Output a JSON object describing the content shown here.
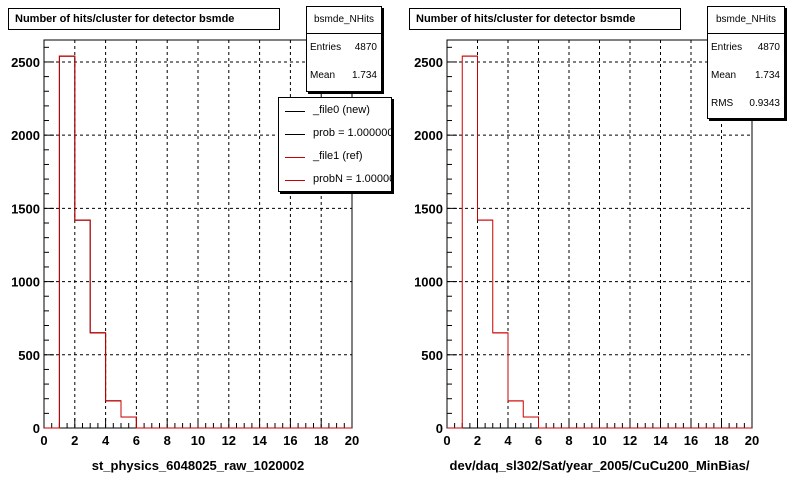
{
  "chart_data": [
    {
      "type": "histogram",
      "title": "Number of hits/cluster for detector bsmde",
      "xlabel": "st_physics_6048025_raw_1020002",
      "xlim": [
        0,
        20
      ],
      "ylim": [
        0,
        2650
      ],
      "x_ticks": [
        0,
        2,
        4,
        6,
        8,
        10,
        12,
        14,
        16,
        18,
        20
      ],
      "y_ticks": [
        0,
        500,
        1000,
        1500,
        2000,
        2500
      ],
      "grid": true,
      "bin_edges": [
        0,
        1,
        2,
        3,
        4,
        5,
        6,
        7,
        8,
        9,
        10,
        11,
        12,
        13,
        14,
        15,
        16,
        17,
        18,
        19,
        20
      ],
      "series": [
        {
          "name": "_file0 (new)",
          "color": "#000000",
          "values": [
            0,
            2540,
            1420,
            650,
            185,
            75,
            0,
            0,
            0,
            0,
            0,
            0,
            0,
            0,
            0,
            0,
            0,
            0,
            0,
            0
          ]
        },
        {
          "name": "_file1 (ref)",
          "color": "#cc0000",
          "values": [
            0,
            2540,
            1420,
            650,
            185,
            75,
            0,
            0,
            0,
            0,
            0,
            0,
            0,
            0,
            0,
            0,
            0,
            0,
            0,
            0
          ]
        }
      ],
      "stats": {
        "name": "bsmde_NHits",
        "rows": [
          {
            "key": "Entries",
            "value": "4870"
          },
          {
            "key": "Mean",
            "value": "1.734"
          }
        ]
      },
      "legend": [
        {
          "label": "_file0 (new)",
          "color": "#000000"
        },
        {
          "label": "prob = 1.000000",
          "color": "#000000"
        },
        {
          "label": "_file1 (ref)",
          "color": "#cc0000"
        },
        {
          "label": "probN = 1.000000",
          "color": "#cc0000"
        }
      ]
    },
    {
      "type": "histogram",
      "title": "Number of hits/cluster for detector bsmde",
      "xlabel": "dev/daq_sl302/Sat/year_2005/CuCu200_MinBias/",
      "xlim": [
        0,
        20
      ],
      "ylim": [
        0,
        2650
      ],
      "x_ticks": [
        0,
        2,
        4,
        6,
        8,
        10,
        12,
        14,
        16,
        18,
        20
      ],
      "y_ticks": [
        0,
        500,
        1000,
        1500,
        2000,
        2500
      ],
      "grid": true,
      "bin_edges": [
        0,
        1,
        2,
        3,
        4,
        5,
        6,
        7,
        8,
        9,
        10,
        11,
        12,
        13,
        14,
        15,
        16,
        17,
        18,
        19,
        20
      ],
      "series": [
        {
          "name": "",
          "color": "#cc0000",
          "values": [
            0,
            2540,
            1420,
            650,
            185,
            75,
            0,
            0,
            0,
            0,
            0,
            0,
            0,
            0,
            0,
            0,
            0,
            0,
            0,
            0
          ]
        }
      ],
      "stats": {
        "name": "bsmde_NHits",
        "rows": [
          {
            "key": "Entries",
            "value": "4870"
          },
          {
            "key": "Mean",
            "value": "1.734"
          },
          {
            "key": "RMS",
            "value": "0.9343"
          }
        ]
      }
    }
  ]
}
